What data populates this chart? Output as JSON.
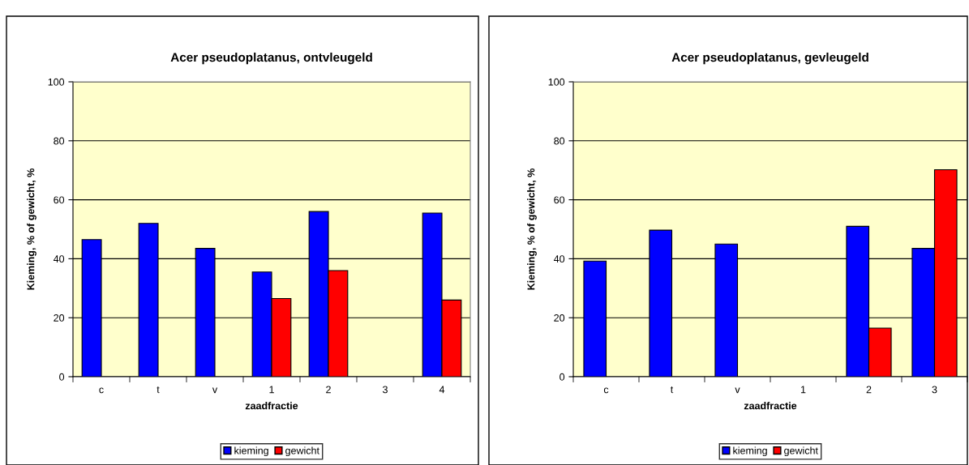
{
  "chart_data": [
    {
      "type": "bar",
      "title": "Acer pseudoplatanus, ontvleugeld",
      "xlabel": "zaadfractie",
      "ylabel": "Kieming, % of gewicht, %",
      "categories": [
        "c",
        "t",
        "v",
        "1",
        "2",
        "3",
        "4"
      ],
      "series": [
        {
          "name": "kieming",
          "color": "#0000ff",
          "values": [
            46.5,
            52,
            43.5,
            35.5,
            56,
            null,
            55.5
          ]
        },
        {
          "name": "gewicht",
          "color": "#ff0000",
          "values": [
            null,
            null,
            null,
            26.5,
            36,
            null,
            26
          ]
        }
      ],
      "ylim": [
        0,
        100
      ],
      "yticks": [
        0,
        20,
        40,
        60,
        80,
        100
      ],
      "grid": "y",
      "legend": "bottom"
    },
    {
      "type": "bar",
      "title": "Acer pseudoplatanus, gevleugeld",
      "xlabel": "zaadfractie",
      "ylabel": "Kieming, % of gewicht, %",
      "categories": [
        "c",
        "t",
        "v",
        "1",
        "2",
        "3"
      ],
      "series": [
        {
          "name": "kieming",
          "color": "#0000ff",
          "values": [
            39.2,
            49.7,
            45,
            null,
            51,
            43.5
          ]
        },
        {
          "name": "gewicht",
          "color": "#ff0000",
          "values": [
            null,
            null,
            null,
            null,
            16.5,
            70.2
          ]
        }
      ],
      "ylim": [
        0,
        100
      ],
      "yticks": [
        0,
        20,
        40,
        60,
        80,
        100
      ],
      "grid": "y",
      "legend": "bottom"
    }
  ]
}
